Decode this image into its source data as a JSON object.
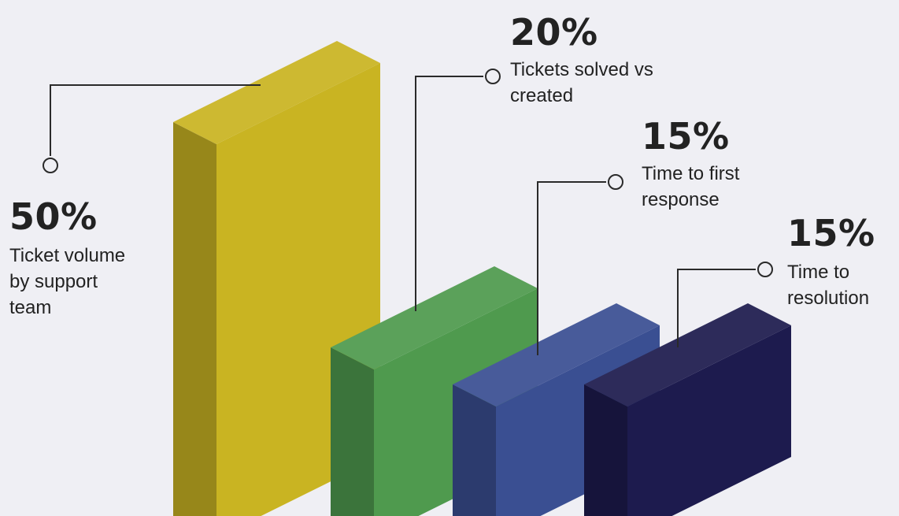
{
  "chart_data": {
    "type": "bar",
    "categories": [
      "Ticket volume by support team",
      "Tickets solved vs created",
      "Time to first response",
      "Time to resolution"
    ],
    "values": [
      50,
      20,
      15,
      15
    ],
    "value_labels": [
      "50%",
      "20%",
      "15%",
      "15%"
    ],
    "unit": "%",
    "style": "3d-isometric",
    "colors": [
      "#c9b422",
      "#4f9a4e",
      "#3a4f92",
      "#1d1b4e"
    ],
    "title": "",
    "xlabel": "",
    "ylabel": ""
  },
  "labels": [
    {
      "pct": "50%",
      "lines": [
        "Ticket volume",
        "by support",
        "team"
      ]
    },
    {
      "pct": "20%",
      "lines": [
        "Tickets solved vs",
        "created"
      ]
    },
    {
      "pct": "15%",
      "lines": [
        "Time to first",
        "response"
      ]
    },
    {
      "pct": "15%",
      "lines": [
        "Time to",
        "resolution"
      ]
    }
  ]
}
